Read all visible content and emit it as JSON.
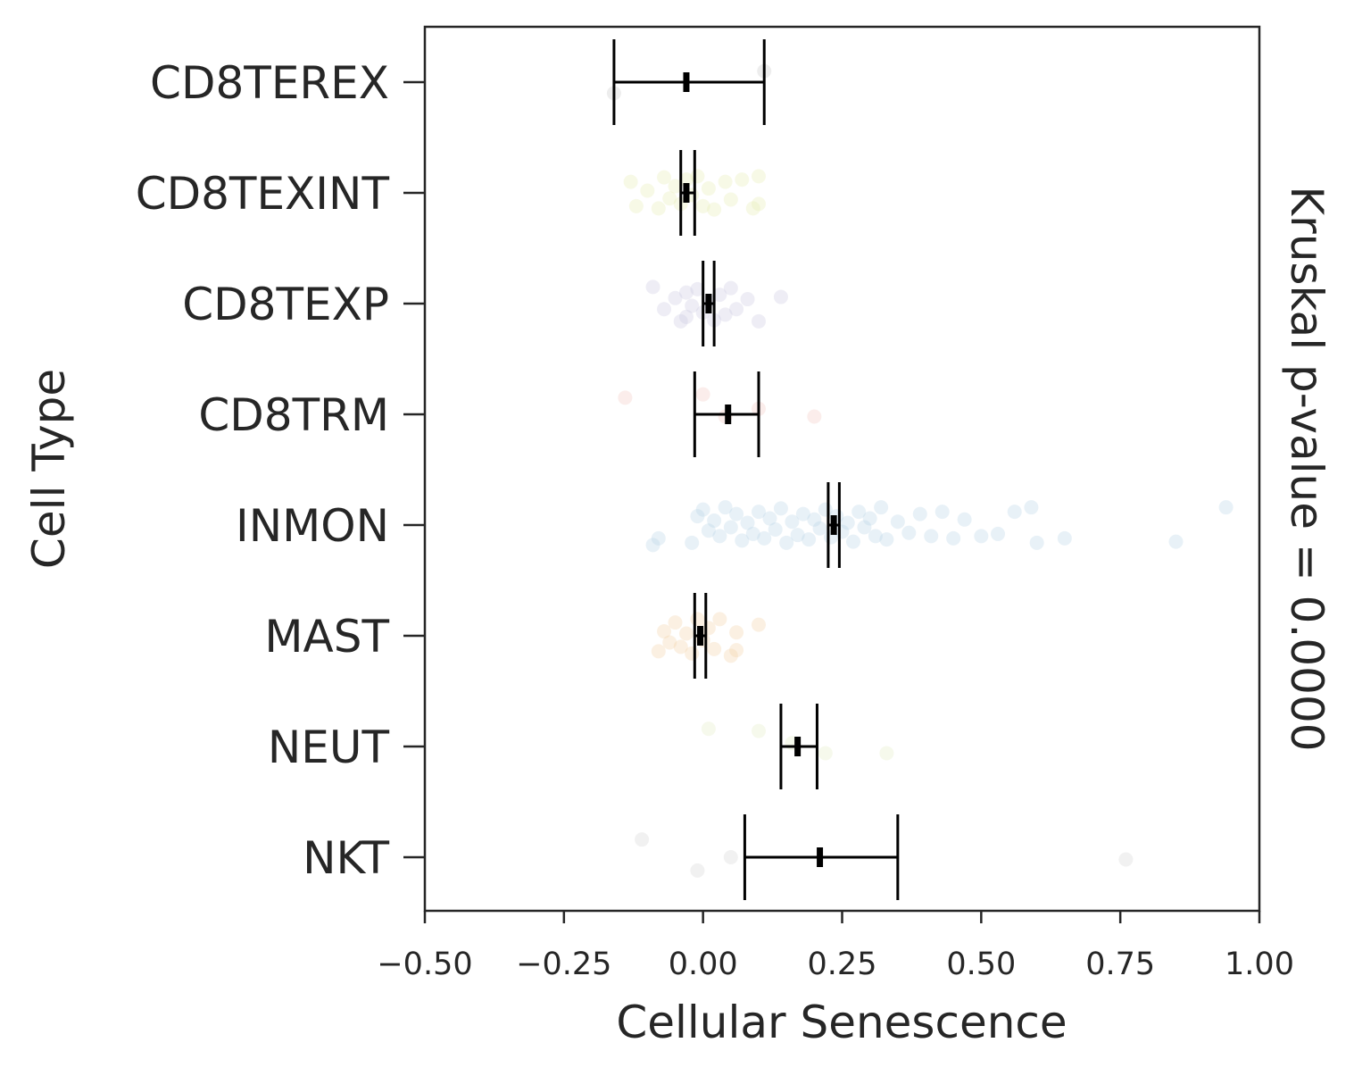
{
  "chart_data": {
    "type": "scatter",
    "orientation": "horizontal",
    "xlabel": "Cellular Senescence",
    "ylabel": "Cell Type",
    "annotation": "Kruskal p-value = 0.0000",
    "xlim": [
      -0.5,
      1.0
    ],
    "xticks": [
      "−0.50",
      "−0.25",
      "0.00",
      "0.25",
      "0.50",
      "0.75",
      "1.00"
    ],
    "xtick_values": [
      -0.5,
      -0.25,
      0.0,
      0.25,
      0.5,
      0.75,
      1.0
    ],
    "grid": false,
    "categories": [
      "CD8TEREX",
      "CD8TEXINT",
      "CD8TEXP",
      "CD8TRM",
      "INMON",
      "MAST",
      "NEUT",
      "NKT"
    ],
    "series": [
      {
        "category": "CD8TEREX",
        "color": "#c8c8c8",
        "mean": -0.03,
        "ci_low": -0.16,
        "ci_high": 0.11,
        "points": [
          {
            "x": -0.16,
            "j": 0.1
          },
          {
            "x": 0.11,
            "j": -0.1
          }
        ]
      },
      {
        "category": "CD8TEXINT",
        "color": "#e6edb0",
        "mean": -0.03,
        "ci_low": -0.04,
        "ci_high": -0.015,
        "points": [
          {
            "x": -0.13,
            "j": -0.1
          },
          {
            "x": -0.12,
            "j": 0.12
          },
          {
            "x": -0.1,
            "j": -0.02
          },
          {
            "x": -0.08,
            "j": 0.14
          },
          {
            "x": -0.07,
            "j": -0.14
          },
          {
            "x": -0.06,
            "j": 0.05
          },
          {
            "x": -0.05,
            "j": -0.06
          },
          {
            "x": -0.04,
            "j": 0.1
          },
          {
            "x": -0.03,
            "j": -0.12
          },
          {
            "x": -0.02,
            "j": 0.02
          },
          {
            "x": -0.01,
            "j": -0.15
          },
          {
            "x": 0.0,
            "j": 0.12
          },
          {
            "x": 0.01,
            "j": -0.04
          },
          {
            "x": 0.02,
            "j": 0.15
          },
          {
            "x": 0.04,
            "j": -0.1
          },
          {
            "x": 0.05,
            "j": 0.06
          },
          {
            "x": 0.07,
            "j": -0.12
          },
          {
            "x": 0.09,
            "j": 0.14
          },
          {
            "x": 0.1,
            "j": -0.15
          },
          {
            "x": 0.1,
            "j": 0.1
          }
        ]
      },
      {
        "category": "CD8TEXP",
        "color": "#c9c6df",
        "mean": 0.01,
        "ci_low": 0.0,
        "ci_high": 0.02,
        "points": [
          {
            "x": -0.09,
            "j": -0.15
          },
          {
            "x": -0.07,
            "j": 0.05
          },
          {
            "x": -0.05,
            "j": -0.05
          },
          {
            "x": -0.04,
            "j": 0.16
          },
          {
            "x": -0.03,
            "j": -0.1
          },
          {
            "x": -0.03,
            "j": 0.12
          },
          {
            "x": -0.02,
            "j": 0.02
          },
          {
            "x": -0.01,
            "j": -0.13
          },
          {
            "x": 0.0,
            "j": 0.08
          },
          {
            "x": 0.01,
            "j": -0.02
          },
          {
            "x": 0.02,
            "j": 0.15
          },
          {
            "x": 0.03,
            "j": -0.08
          },
          {
            "x": 0.04,
            "j": 0.1
          },
          {
            "x": 0.05,
            "j": -0.14
          },
          {
            "x": 0.06,
            "j": 0.05
          },
          {
            "x": 0.08,
            "j": -0.04
          },
          {
            "x": 0.1,
            "j": 0.16
          },
          {
            "x": 0.14,
            "j": -0.06
          }
        ]
      },
      {
        "category": "CD8TRM",
        "color": "#f4c7c0",
        "mean": 0.045,
        "ci_low": -0.015,
        "ci_high": 0.1,
        "points": [
          {
            "x": -0.14,
            "j": -0.15
          },
          {
            "x": 0.0,
            "j": -0.18
          },
          {
            "x": 0.04,
            "j": 0.02
          },
          {
            "x": 0.1,
            "j": -0.05
          },
          {
            "x": 0.2,
            "j": 0.02
          }
        ]
      },
      {
        "category": "INMON",
        "color": "#b9d3e6",
        "mean": 0.235,
        "ci_low": 0.225,
        "ci_high": 0.245,
        "points": [
          {
            "x": -0.09,
            "j": 0.18
          },
          {
            "x": -0.08,
            "j": 0.12
          },
          {
            "x": -0.02,
            "j": 0.16
          },
          {
            "x": -0.01,
            "j": -0.08
          },
          {
            "x": 0.0,
            "j": -0.14
          },
          {
            "x": 0.01,
            "j": 0.05
          },
          {
            "x": 0.02,
            "j": -0.04
          },
          {
            "x": 0.03,
            "j": 0.1
          },
          {
            "x": 0.04,
            "j": -0.16
          },
          {
            "x": 0.05,
            "j": 0.02
          },
          {
            "x": 0.06,
            "j": -0.1
          },
          {
            "x": 0.07,
            "j": 0.14
          },
          {
            "x": 0.08,
            "j": -0.02
          },
          {
            "x": 0.09,
            "j": 0.08
          },
          {
            "x": 0.1,
            "j": -0.12
          },
          {
            "x": 0.11,
            "j": 0.12
          },
          {
            "x": 0.12,
            "j": -0.06
          },
          {
            "x": 0.13,
            "j": 0.04
          },
          {
            "x": 0.14,
            "j": -0.15
          },
          {
            "x": 0.15,
            "j": 0.16
          },
          {
            "x": 0.16,
            "j": -0.03
          },
          {
            "x": 0.17,
            "j": 0.09
          },
          {
            "x": 0.18,
            "j": -0.1
          },
          {
            "x": 0.19,
            "j": 0.13
          },
          {
            "x": 0.2,
            "j": -0.05
          },
          {
            "x": 0.21,
            "j": 0.03
          },
          {
            "x": 0.22,
            "j": -0.14
          },
          {
            "x": 0.23,
            "j": 0.11
          },
          {
            "x": 0.24,
            "j": -0.08
          },
          {
            "x": 0.25,
            "j": 0.06
          },
          {
            "x": 0.26,
            "j": -0.02
          },
          {
            "x": 0.27,
            "j": 0.15
          },
          {
            "x": 0.28,
            "j": -0.12
          },
          {
            "x": 0.29,
            "j": 0.02
          },
          {
            "x": 0.3,
            "j": -0.06
          },
          {
            "x": 0.31,
            "j": 0.1
          },
          {
            "x": 0.32,
            "j": -0.16
          },
          {
            "x": 0.33,
            "j": 0.13
          },
          {
            "x": 0.35,
            "j": -0.03
          },
          {
            "x": 0.37,
            "j": 0.07
          },
          {
            "x": 0.39,
            "j": -0.1
          },
          {
            "x": 0.41,
            "j": 0.1
          },
          {
            "x": 0.43,
            "j": -0.12
          },
          {
            "x": 0.45,
            "j": 0.12
          },
          {
            "x": 0.47,
            "j": -0.05
          },
          {
            "x": 0.5,
            "j": 0.1
          },
          {
            "x": 0.53,
            "j": 0.08
          },
          {
            "x": 0.56,
            "j": -0.12
          },
          {
            "x": 0.59,
            "j": -0.16
          },
          {
            "x": 0.6,
            "j": 0.16
          },
          {
            "x": 0.65,
            "j": 0.12
          },
          {
            "x": 0.85,
            "j": 0.15
          },
          {
            "x": 0.94,
            "j": -0.16
          }
        ]
      },
      {
        "category": "MAST",
        "color": "#f2cfa6",
        "mean": -0.005,
        "ci_low": -0.015,
        "ci_high": 0.005,
        "points": [
          {
            "x": -0.08,
            "j": 0.14
          },
          {
            "x": -0.07,
            "j": -0.04
          },
          {
            "x": -0.06,
            "j": 0.06
          },
          {
            "x": -0.05,
            "j": -0.12
          },
          {
            "x": -0.04,
            "j": 0.1
          },
          {
            "x": -0.03,
            "j": -0.02
          },
          {
            "x": -0.02,
            "j": 0.16
          },
          {
            "x": -0.01,
            "j": -0.15
          },
          {
            "x": 0.0,
            "j": 0.04
          },
          {
            "x": 0.01,
            "j": -0.07
          },
          {
            "x": 0.02,
            "j": 0.12
          },
          {
            "x": 0.03,
            "j": -0.15
          },
          {
            "x": 0.05,
            "j": 0.18
          },
          {
            "x": 0.06,
            "j": 0.13
          },
          {
            "x": 0.06,
            "j": -0.03
          },
          {
            "x": 0.1,
            "j": -0.1
          }
        ]
      },
      {
        "category": "NEUT",
        "color": "#e3ecc4",
        "mean": 0.17,
        "ci_low": 0.14,
        "ci_high": 0.205,
        "points": [
          {
            "x": 0.01,
            "j": -0.16
          },
          {
            "x": 0.1,
            "j": -0.14
          },
          {
            "x": 0.16,
            "j": -0.03
          },
          {
            "x": 0.22,
            "j": 0.06
          },
          {
            "x": 0.33,
            "j": 0.06
          }
        ]
      },
      {
        "category": "NKT",
        "color": "#d3d3d3",
        "mean": 0.21,
        "ci_low": 0.075,
        "ci_high": 0.35,
        "points": [
          {
            "x": -0.11,
            "j": -0.16
          },
          {
            "x": -0.01,
            "j": 0.12
          },
          {
            "x": 0.05,
            "j": 0.0
          },
          {
            "x": 0.76,
            "j": 0.02
          }
        ]
      }
    ]
  }
}
